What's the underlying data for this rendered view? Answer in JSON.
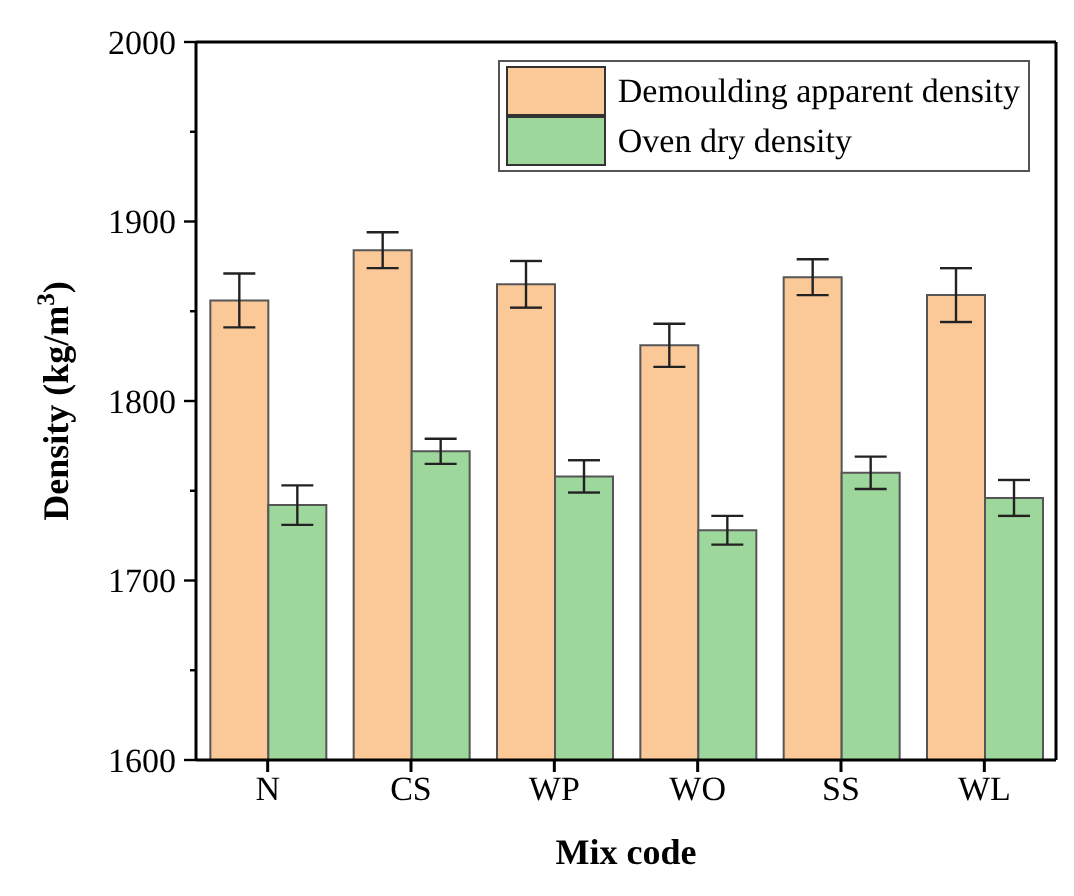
{
  "chart_data": {
    "type": "bar",
    "xlabel": "Mix code",
    "ylabel": "Density (kg/m$^{3}$)",
    "categories": [
      "N",
      "CS",
      "WP",
      "WO",
      "SS",
      "WL"
    ],
    "series": [
      {
        "name": "Demoulding apparent density",
        "color": "#fbc898",
        "values": [
          1856,
          1884,
          1865,
          1831,
          1869,
          1859
        ],
        "errors": [
          15,
          10,
          13,
          12,
          10,
          15
        ]
      },
      {
        "name": "Oven dry density",
        "color": "#9ed79b",
        "values": [
          1742,
          1772,
          1758,
          1728,
          1760,
          1746
        ],
        "errors": [
          11,
          7,
          9,
          8,
          9,
          10
        ]
      }
    ],
    "ylim": [
      1600,
      2000
    ],
    "yticks": [
      1600,
      {
        "value": 1650,
        "label": null
      },
      1700,
      {
        "value": 1750,
        "label": null
      },
      1800,
      {
        "value": 1850,
        "label": null
      },
      1900,
      {
        "value": 1950,
        "label": null
      },
      2000
    ],
    "grid": false,
    "legend": "top right"
  }
}
